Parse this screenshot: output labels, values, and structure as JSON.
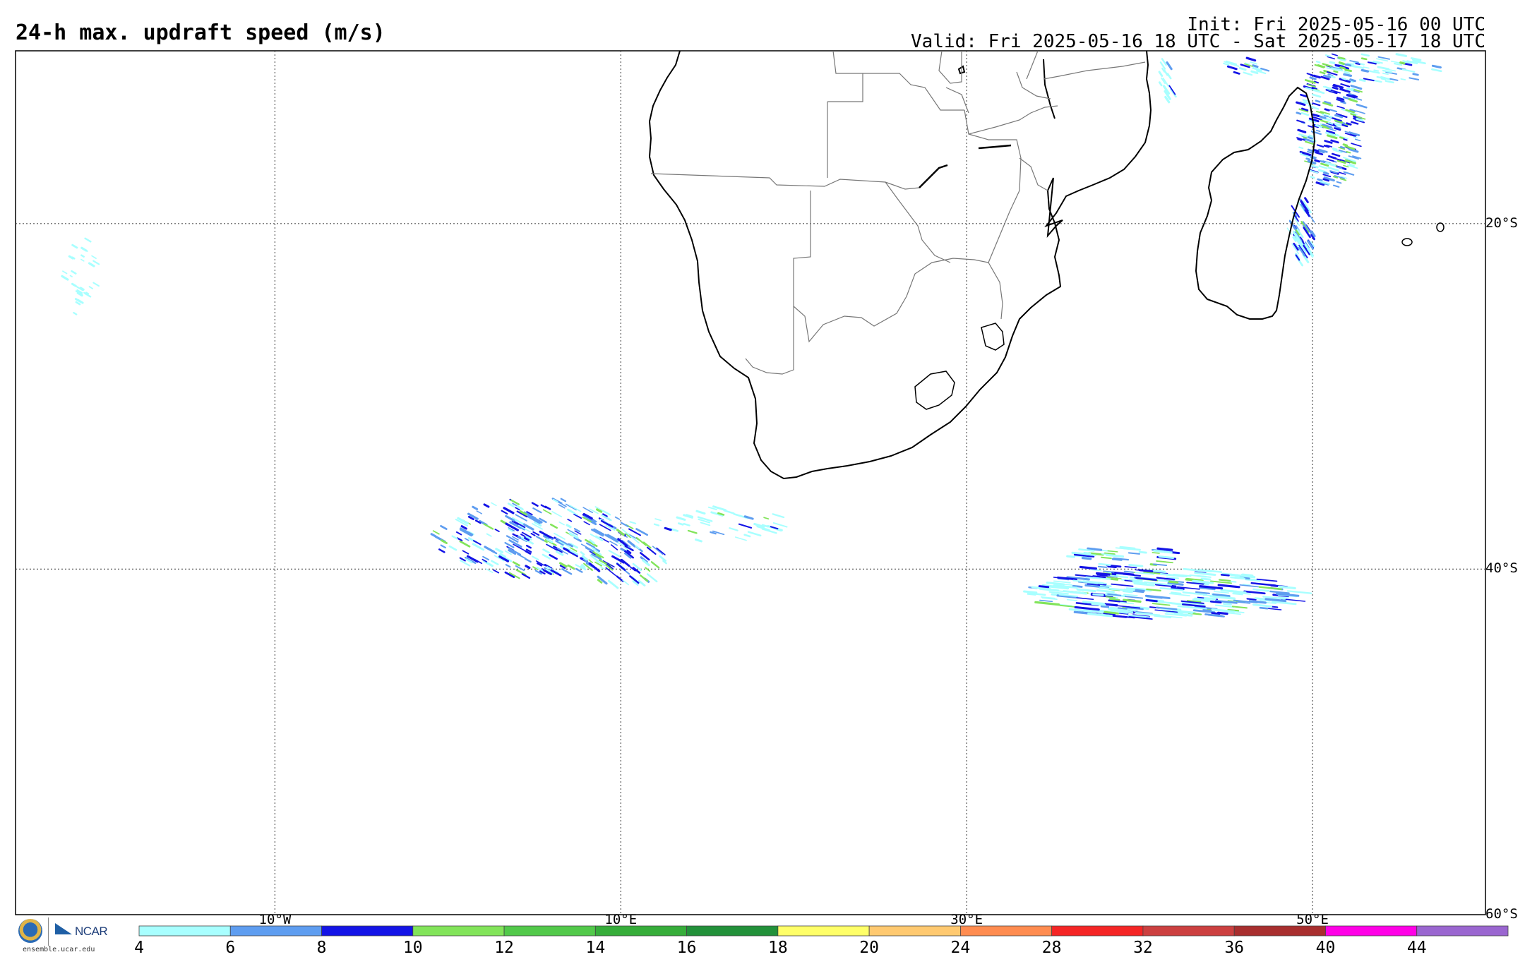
{
  "title": "24-h max. updraft speed (m/s)",
  "init_text": "Init: Fri 2025-05-16 00 UTC",
  "valid_text": "Valid: Fri 2025-05-16 18 UTC - Sat 2025-05-17 18 UTC",
  "map": {
    "lon_range": [
      -25,
      60
    ],
    "lat_range": [
      -60,
      -10
    ],
    "lat_lines": [
      {
        "value": -20,
        "label": "20°S"
      },
      {
        "value": -40,
        "label": "40°S"
      },
      {
        "value": -60,
        "label": "60°S"
      }
    ],
    "lon_lines": [
      {
        "value": -10,
        "label": "10°W"
      },
      {
        "value": 10,
        "label": "10°E"
      },
      {
        "value": 30,
        "label": "30°E"
      },
      {
        "value": 50,
        "label": "50°E"
      }
    ],
    "gridline_style": "dotted",
    "coastline_color": "#000000",
    "border_color": "#777777"
  },
  "legend": {
    "bounds": [
      "4",
      "6",
      "8",
      "10",
      "12",
      "14",
      "16",
      "18",
      "20",
      "24",
      "28",
      "32",
      "36",
      "40",
      "44"
    ],
    "colors": [
      "#a8ffff",
      "#5e9df0",
      "#1414e6",
      "#82e45a",
      "#52c94a",
      "#36ad3a",
      "#22913a",
      "#ffff68",
      "#ffc970",
      "#ff8c50",
      "#f52525",
      "#cc4040",
      "#a82e2e",
      "#ff00e6",
      "#9a66d0"
    ]
  },
  "logo": {
    "org": "NCAR",
    "org2": "NSF",
    "url": "ensemble.ucar.edu"
  }
}
